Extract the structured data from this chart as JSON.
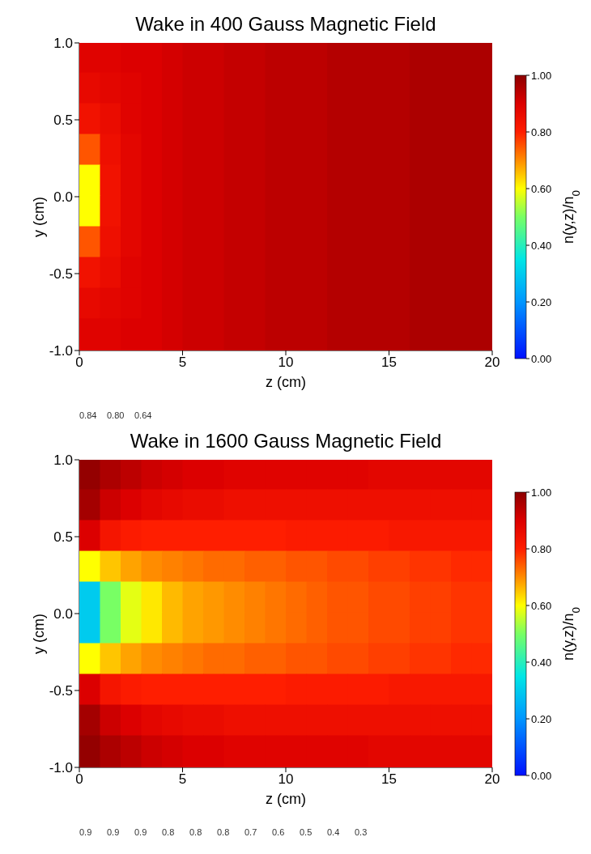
{
  "chart_data": [
    {
      "type": "heatmap",
      "title": "Wake in 400 Gauss Magnetic Field",
      "xlabel": "z (cm)",
      "ylabel": "y (cm)",
      "clabel": "n(y,z)/n$_{0}$",
      "xlim": [
        0,
        20
      ],
      "ylim": [
        -1,
        1
      ],
      "xticks": [
        0,
        5,
        10,
        15,
        20
      ],
      "yticks": [
        {
          "value": -1,
          "label": "-1.0"
        },
        {
          "value": -0.5,
          "label": "-0.5"
        },
        {
          "value": 0,
          "label": "0.0"
        },
        {
          "value": 0.5,
          "label": "0.5"
        },
        {
          "value": 1,
          "label": "1.0"
        }
      ],
      "clim": [
        0,
        1
      ],
      "cticks": [
        {
          "value": 0,
          "label": "0.00"
        },
        {
          "value": 0.2,
          "label": "0.20"
        },
        {
          "value": 0.4,
          "label": "0.40"
        },
        {
          "value": 0.6,
          "label": "0.60"
        },
        {
          "value": 0.8,
          "label": "0.80"
        },
        {
          "value": 1,
          "label": "1.00"
        }
      ],
      "x": [
        0.5,
        1.5,
        2.5,
        3.5,
        4.5,
        5.5,
        6.5,
        7.5,
        8.5,
        9.5,
        10.5,
        11.5,
        12.5,
        13.5,
        14.5,
        15.5,
        16.5,
        17.5,
        18.5,
        19.5
      ],
      "y": [
        0.9,
        0.7,
        0.5,
        0.3,
        0.1,
        -0.1,
        -0.3,
        -0.5,
        -0.7,
        -0.9
      ],
      "cells": [
        [
          0.89,
          0.89,
          0.9,
          0.9,
          0.91,
          0.92,
          0.92,
          0.93,
          0.93,
          0.94,
          0.94,
          0.94,
          0.95,
          0.95,
          0.95,
          0.95,
          0.96,
          0.96,
          0.96,
          0.96
        ],
        [
          0.87,
          0.88,
          0.89,
          0.9,
          0.91,
          0.92,
          0.92,
          0.93,
          0.93,
          0.94,
          0.94,
          0.94,
          0.95,
          0.95,
          0.95,
          0.95,
          0.96,
          0.96,
          0.96,
          0.96
        ],
        [
          0.84,
          0.86,
          0.89,
          0.9,
          0.91,
          0.92,
          0.92,
          0.93,
          0.93,
          0.94,
          0.94,
          0.94,
          0.95,
          0.95,
          0.95,
          0.95,
          0.96,
          0.96,
          0.96,
          0.96
        ],
        [
          0.75,
          0.85,
          0.88,
          0.9,
          0.91,
          0.92,
          0.92,
          0.93,
          0.93,
          0.94,
          0.94,
          0.94,
          0.95,
          0.95,
          0.95,
          0.95,
          0.96,
          0.96,
          0.96,
          0.96
        ],
        [
          0.6,
          0.84,
          0.88,
          0.9,
          0.91,
          0.92,
          0.92,
          0.93,
          0.93,
          0.94,
          0.94,
          0.94,
          0.95,
          0.95,
          0.95,
          0.95,
          0.96,
          0.96,
          0.96,
          0.96
        ],
        [
          0.6,
          0.84,
          0.88,
          0.9,
          0.91,
          0.92,
          0.92,
          0.93,
          0.93,
          0.94,
          0.94,
          0.94,
          0.95,
          0.95,
          0.95,
          0.95,
          0.96,
          0.96,
          0.96,
          0.96
        ],
        [
          0.75,
          0.85,
          0.88,
          0.9,
          0.91,
          0.92,
          0.92,
          0.93,
          0.93,
          0.94,
          0.94,
          0.94,
          0.95,
          0.95,
          0.95,
          0.95,
          0.96,
          0.96,
          0.96,
          0.96
        ],
        [
          0.84,
          0.86,
          0.89,
          0.9,
          0.91,
          0.92,
          0.92,
          0.93,
          0.93,
          0.94,
          0.94,
          0.94,
          0.95,
          0.95,
          0.95,
          0.95,
          0.96,
          0.96,
          0.96,
          0.96
        ],
        [
          0.87,
          0.88,
          0.89,
          0.9,
          0.91,
          0.92,
          0.92,
          0.93,
          0.93,
          0.94,
          0.94,
          0.94,
          0.95,
          0.95,
          0.95,
          0.95,
          0.96,
          0.96,
          0.96,
          0.96
        ],
        [
          0.89,
          0.89,
          0.9,
          0.9,
          0.91,
          0.92,
          0.92,
          0.93,
          0.93,
          0.94,
          0.94,
          0.94,
          0.95,
          0.95,
          0.95,
          0.95,
          0.96,
          0.96,
          0.96,
          0.96
        ]
      ],
      "annotations": [
        "0.84",
        "0.80",
        "0.64"
      ]
    },
    {
      "type": "heatmap",
      "title": "Wake in 1600 Gauss Magnetic Field",
      "xlabel": "z (cm)",
      "ylabel": "y (cm)",
      "clabel": "n(y,z)/n$_{0}$",
      "xlim": [
        0,
        20
      ],
      "ylim": [
        -1,
        1
      ],
      "xticks": [
        0,
        5,
        10,
        15,
        20
      ],
      "yticks": [
        {
          "value": -1,
          "label": "-1.0"
        },
        {
          "value": -0.5,
          "label": "-0.5"
        },
        {
          "value": 0,
          "label": "0.0"
        },
        {
          "value": 0.5,
          "label": "0.5"
        },
        {
          "value": 1,
          "label": "1.0"
        }
      ],
      "clim": [
        0,
        1
      ],
      "cticks": [
        {
          "value": 0,
          "label": "0.00"
        },
        {
          "value": 0.2,
          "label": "0.20"
        },
        {
          "value": 0.4,
          "label": "0.40"
        },
        {
          "value": 0.6,
          "label": "0.60"
        },
        {
          "value": 0.8,
          "label": "0.80"
        },
        {
          "value": 1,
          "label": "1.00"
        }
      ],
      "x": [
        0.5,
        1.5,
        2.5,
        3.5,
        4.5,
        5.5,
        6.5,
        7.5,
        8.5,
        9.5,
        10.5,
        11.5,
        12.5,
        13.5,
        14.5,
        15.5,
        16.5,
        17.5,
        18.5,
        19.5
      ],
      "y": [
        0.9,
        0.7,
        0.5,
        0.3,
        0.1,
        -0.1,
        -0.3,
        -0.5,
        -0.7,
        -0.9
      ],
      "cells": [
        [
          0.99,
          0.96,
          0.94,
          0.92,
          0.91,
          0.9,
          0.9,
          0.89,
          0.89,
          0.89,
          0.89,
          0.89,
          0.89,
          0.89,
          0.88,
          0.88,
          0.88,
          0.88,
          0.88,
          0.88
        ],
        [
          0.97,
          0.92,
          0.9,
          0.88,
          0.87,
          0.86,
          0.86,
          0.85,
          0.85,
          0.85,
          0.85,
          0.85,
          0.85,
          0.85,
          0.85,
          0.85,
          0.85,
          0.85,
          0.85,
          0.85
        ],
        [
          0.9,
          0.83,
          0.81,
          0.8,
          0.8,
          0.8,
          0.8,
          0.8,
          0.8,
          0.8,
          0.81,
          0.81,
          0.81,
          0.81,
          0.81,
          0.82,
          0.82,
          0.82,
          0.82,
          0.82
        ],
        [
          0.6,
          0.65,
          0.68,
          0.7,
          0.71,
          0.72,
          0.73,
          0.73,
          0.74,
          0.74,
          0.75,
          0.75,
          0.76,
          0.76,
          0.77,
          0.77,
          0.78,
          0.78,
          0.79,
          0.79
        ],
        [
          0.3,
          0.5,
          0.58,
          0.62,
          0.66,
          0.68,
          0.69,
          0.7,
          0.71,
          0.72,
          0.73,
          0.74,
          0.75,
          0.75,
          0.76,
          0.76,
          0.77,
          0.77,
          0.78,
          0.78
        ],
        [
          0.3,
          0.5,
          0.58,
          0.62,
          0.66,
          0.68,
          0.69,
          0.7,
          0.71,
          0.72,
          0.73,
          0.74,
          0.75,
          0.75,
          0.76,
          0.76,
          0.77,
          0.77,
          0.78,
          0.78
        ],
        [
          0.6,
          0.65,
          0.68,
          0.7,
          0.71,
          0.72,
          0.73,
          0.73,
          0.74,
          0.74,
          0.75,
          0.75,
          0.76,
          0.76,
          0.77,
          0.77,
          0.78,
          0.78,
          0.79,
          0.79
        ],
        [
          0.9,
          0.83,
          0.81,
          0.8,
          0.8,
          0.8,
          0.8,
          0.8,
          0.8,
          0.8,
          0.81,
          0.81,
          0.81,
          0.81,
          0.81,
          0.82,
          0.82,
          0.82,
          0.82,
          0.82
        ],
        [
          0.97,
          0.92,
          0.9,
          0.88,
          0.87,
          0.86,
          0.86,
          0.85,
          0.85,
          0.85,
          0.85,
          0.85,
          0.85,
          0.85,
          0.85,
          0.85,
          0.85,
          0.85,
          0.85,
          0.85
        ],
        [
          0.99,
          0.96,
          0.94,
          0.92,
          0.91,
          0.9,
          0.9,
          0.89,
          0.89,
          0.89,
          0.89,
          0.89,
          0.89,
          0.89,
          0.88,
          0.88,
          0.88,
          0.88,
          0.88,
          0.88
        ]
      ],
      "annotations": [
        "0.9",
        "0.9",
        "0.9",
        "0.8",
        "0.8",
        "0.8",
        "0.7",
        "0.6",
        "0.5",
        "0.4",
        "0.3"
      ]
    }
  ]
}
